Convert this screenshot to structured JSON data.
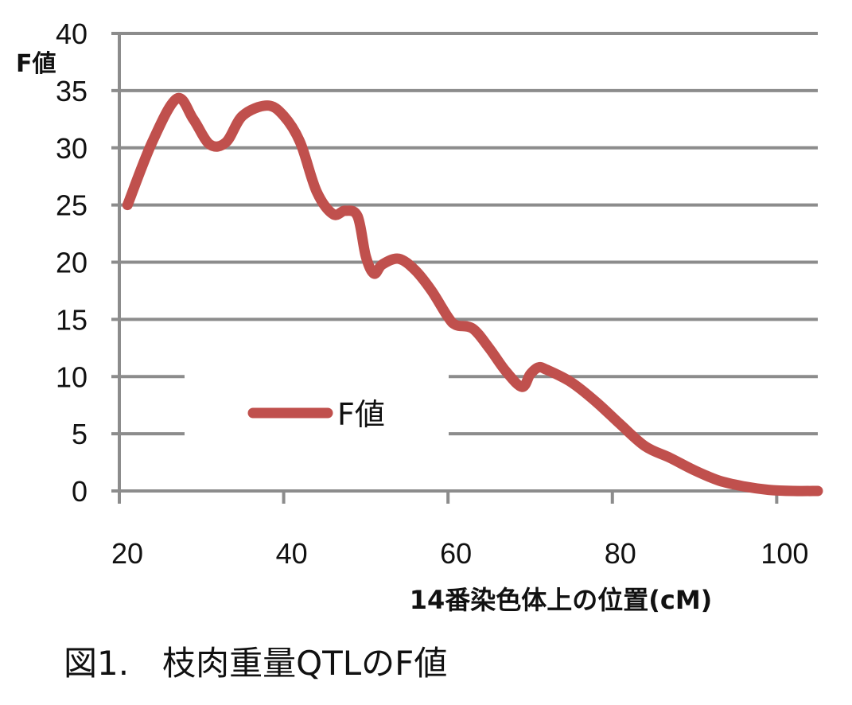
{
  "chart_data": {
    "type": "line",
    "ylabel": "F値",
    "xlabel": "14番染色体上の位置(cM)",
    "xlim": [
      20,
      105
    ],
    "ylim": [
      0,
      40
    ],
    "xticks": [
      "20",
      "40",
      "60",
      "80",
      "100"
    ],
    "yticks": [
      "0",
      "5",
      "10",
      "15",
      "20",
      "25",
      "30",
      "35",
      "40"
    ],
    "grid": true,
    "legend_position": "center-left",
    "series": [
      {
        "name": "F値",
        "color": "#c0504d",
        "x": [
          21,
          24,
          27,
          29,
          31,
          33,
          35,
          38,
          40,
          42,
          44,
          46,
          47.5,
          49,
          50,
          51,
          52,
          54,
          56,
          58,
          60,
          61,
          63,
          65,
          67,
          69,
          70,
          71,
          72,
          75,
          78,
          81,
          84,
          87,
          90,
          93,
          96,
          99,
          102,
          105
        ],
        "y": [
          25,
          30.5,
          34.3,
          32.5,
          30.3,
          30.5,
          32.8,
          33.7,
          32.8,
          30.5,
          26.2,
          24.2,
          24.5,
          24,
          20.5,
          19,
          19.8,
          20.3,
          19.3,
          17.5,
          15.2,
          14.5,
          14.2,
          12.5,
          10.5,
          9.1,
          10.2,
          10.8,
          10.6,
          9.5,
          7.8,
          5.8,
          3.9,
          2.9,
          1.8,
          0.9,
          0.4,
          0.1,
          0,
          0
        ]
      }
    ]
  },
  "caption": "図1.　枝肉重量QTLのF値"
}
